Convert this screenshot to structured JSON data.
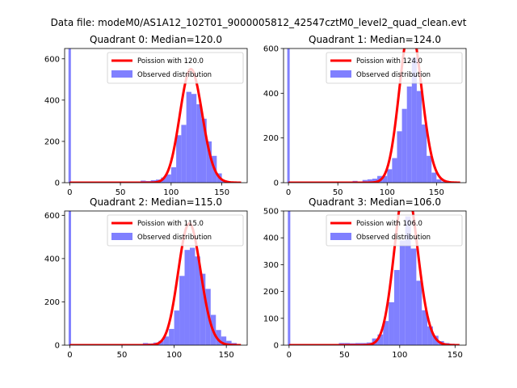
{
  "figure": {
    "suptitle": "Data file: modeM0/AS1A12_102T01_9000005812_42547cztM0_level2_quad_clean.evt"
  },
  "legend": {
    "poisson_prefix": "Poission with",
    "observed_label": "Observed distribution"
  },
  "colors": {
    "poisson": "#ff0000",
    "observed": "#8080ff"
  },
  "chart_data": [
    {
      "type": "bar",
      "title": "Quadrant 0: Median=120.0",
      "median": 120.0,
      "poisson_label": "Poission with 120.0",
      "x_ticks": [
        0,
        50,
        100,
        150
      ],
      "y_ticks": [
        0,
        200,
        400,
        600
      ],
      "xlim": [
        -5,
        175
      ],
      "ylim": [
        0,
        650
      ],
      "zero_bin_value": 650,
      "bins": [
        [
          70,
          10
        ],
        [
          75,
          8
        ],
        [
          80,
          12
        ],
        [
          85,
          15
        ],
        [
          90,
          25
        ],
        [
          95,
          40
        ],
        [
          100,
          75
        ],
        [
          105,
          230
        ],
        [
          110,
          280
        ],
        [
          115,
          440
        ],
        [
          120,
          430
        ],
        [
          125,
          380
        ],
        [
          130,
          310
        ],
        [
          135,
          200
        ],
        [
          140,
          130
        ],
        [
          145,
          45
        ],
        [
          150,
          8
        ],
        [
          155,
          5
        ]
      ],
      "series": [
        {
          "name": "Poission with 120.0",
          "kind": "line"
        },
        {
          "name": "Observed distribution",
          "kind": "histogram"
        }
      ]
    },
    {
      "type": "bar",
      "title": "Quadrant 1: Median=124.0",
      "median": 124.0,
      "poisson_label": "Poission with 124.0",
      "x_ticks": [
        0,
        50,
        100,
        150
      ],
      "y_ticks": [
        0,
        200,
        400,
        600
      ],
      "xlim": [
        -5,
        180
      ],
      "ylim": [
        0,
        600
      ],
      "zero_bin_value": 600,
      "bins": [
        [
          45,
          5
        ],
        [
          55,
          5
        ],
        [
          65,
          8
        ],
        [
          75,
          12
        ],
        [
          80,
          15
        ],
        [
          85,
          18
        ],
        [
          90,
          30
        ],
        [
          95,
          30
        ],
        [
          100,
          60
        ],
        [
          105,
          110
        ],
        [
          110,
          230
        ],
        [
          115,
          330
        ],
        [
          120,
          430
        ],
        [
          125,
          560
        ],
        [
          130,
          410
        ],
        [
          135,
          260
        ],
        [
          140,
          120
        ],
        [
          145,
          45
        ],
        [
          150,
          15
        ],
        [
          155,
          5
        ]
      ],
      "series": [
        {
          "name": "Poission with 124.0",
          "kind": "line"
        },
        {
          "name": "Observed distribution",
          "kind": "histogram"
        }
      ]
    },
    {
      "type": "bar",
      "title": "Quadrant 2: Median=115.0",
      "median": 115.0,
      "poisson_label": "Poission with 115.0",
      "x_ticks": [
        0,
        50,
        100,
        150
      ],
      "y_ticks": [
        0,
        200,
        400,
        600
      ],
      "xlim": [
        -5,
        170
      ],
      "ylim": [
        0,
        620
      ],
      "zero_bin_value": 620,
      "bins": [
        [
          70,
          10
        ],
        [
          75,
          8
        ],
        [
          80,
          12
        ],
        [
          85,
          20
        ],
        [
          90,
          40
        ],
        [
          95,
          75
        ],
        [
          100,
          160
        ],
        [
          105,
          320
        ],
        [
          110,
          440
        ],
        [
          115,
          450
        ],
        [
          120,
          410
        ],
        [
          125,
          330
        ],
        [
          130,
          260
        ],
        [
          135,
          140
        ],
        [
          140,
          70
        ],
        [
          145,
          40
        ],
        [
          150,
          20
        ],
        [
          155,
          10
        ]
      ],
      "series": [
        {
          "name": "Poission with 115.0",
          "kind": "line"
        },
        {
          "name": "Observed distribution",
          "kind": "histogram"
        }
      ]
    },
    {
      "type": "bar",
      "title": "Quadrant 3: Median=106.0",
      "median": 106.0,
      "poisson_label": "Poission with 106.0",
      "x_ticks": [
        0,
        50,
        100,
        150
      ],
      "y_ticks": [
        0,
        100,
        200,
        300,
        400,
        500
      ],
      "xlim": [
        -5,
        160
      ],
      "ylim": [
        0,
        500
      ],
      "zero_bin_value": 500,
      "bins": [
        [
          45,
          8
        ],
        [
          50,
          8
        ],
        [
          55,
          7
        ],
        [
          60,
          8
        ],
        [
          65,
          8
        ],
        [
          70,
          10
        ],
        [
          75,
          25
        ],
        [
          80,
          40
        ],
        [
          85,
          90
        ],
        [
          90,
          160
        ],
        [
          95,
          280
        ],
        [
          100,
          390
        ],
        [
          105,
          480
        ],
        [
          110,
          360
        ],
        [
          115,
          240
        ],
        [
          120,
          130
        ],
        [
          125,
          70
        ],
        [
          130,
          35
        ],
        [
          135,
          15
        ],
        [
          140,
          8
        ],
        [
          145,
          5
        ]
      ],
      "series": [
        {
          "name": "Poission with 106.0",
          "kind": "line"
        },
        {
          "name": "Observed distribution",
          "kind": "histogram"
        }
      ]
    }
  ]
}
